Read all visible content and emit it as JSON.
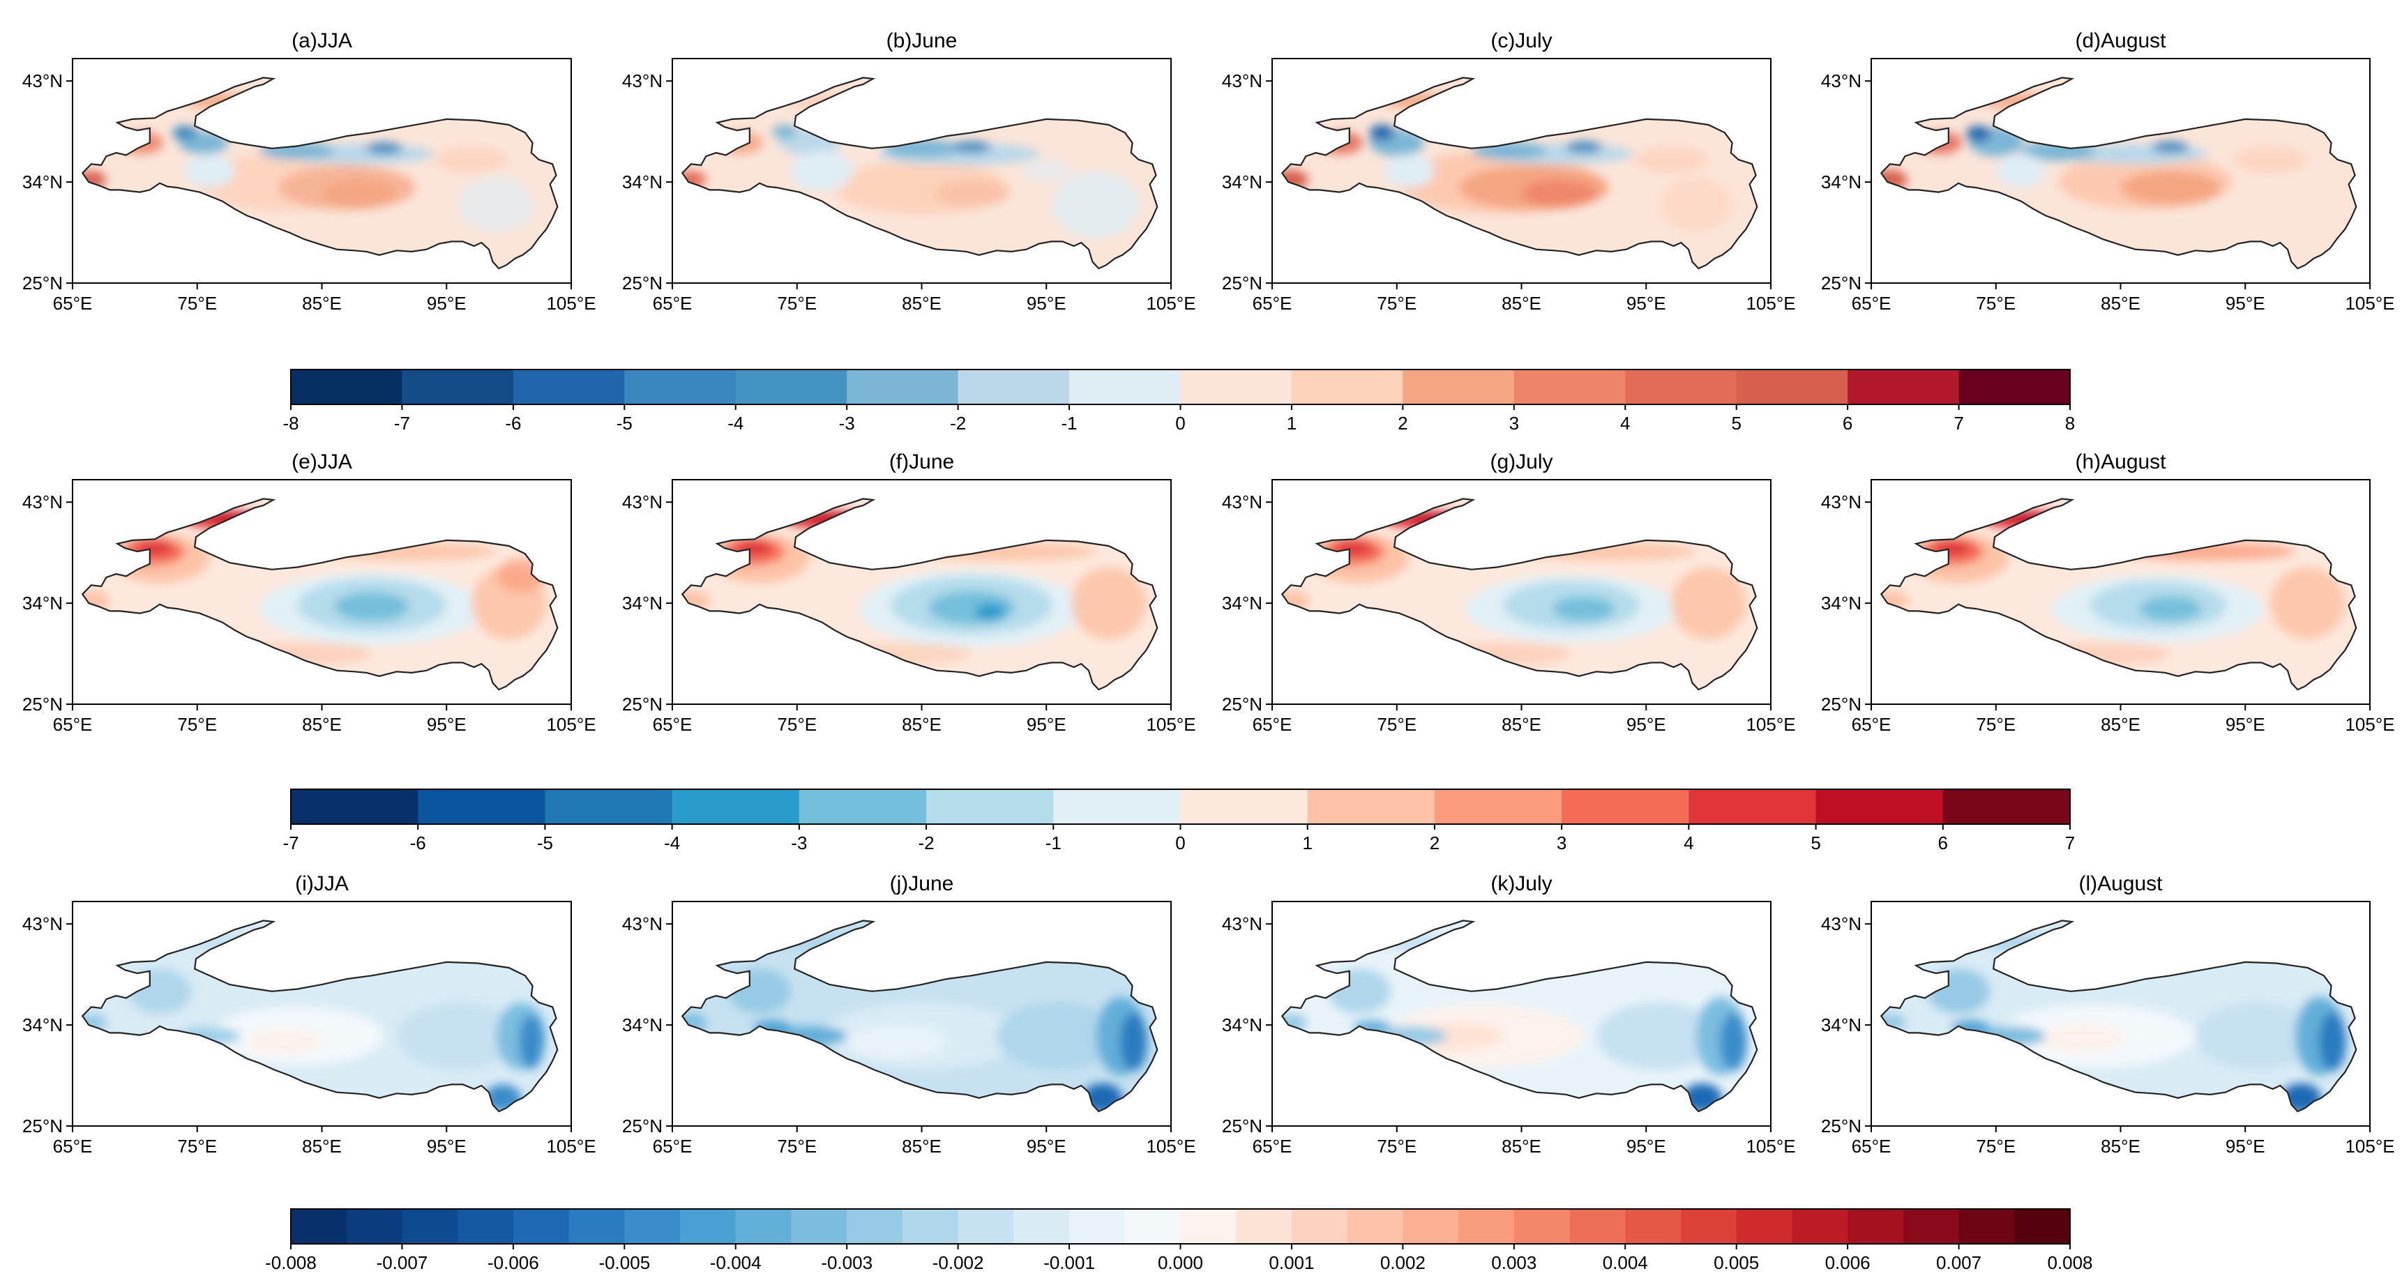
{
  "figure": {
    "rows": [
      {
        "panels": [
          {
            "title": "(a)JJA",
            "pattern": "r1_jja"
          },
          {
            "title": "(b)June",
            "pattern": "r1_june"
          },
          {
            "title": "(c)July",
            "pattern": "r1_july"
          },
          {
            "title": "(d)August",
            "pattern": "r1_august"
          }
        ],
        "colorbar": {
          "ticks": [
            "-8",
            "-7",
            "-6",
            "-5",
            "-4",
            "-3",
            "-2",
            "-1",
            "0",
            "1",
            "2",
            "3",
            "4",
            "5",
            "6",
            "7",
            "8"
          ],
          "colors": [
            "#053061",
            "#134c87",
            "#2166ac",
            "#3a87bf",
            "#4393c3",
            "#7bb6d6",
            "#bad8e9",
            "#dfedf5",
            "#fbe5d9",
            "#fdd2bb",
            "#f4a582",
            "#ee8468",
            "#e26c57",
            "#d6604d",
            "#b2182b",
            "#67001f"
          ]
        }
      },
      {
        "panels": [
          {
            "title": "(e)JJA",
            "pattern": "r2_jja"
          },
          {
            "title": "(f)June",
            "pattern": "r2_june"
          },
          {
            "title": "(g)July",
            "pattern": "r2_july"
          },
          {
            "title": "(h)August",
            "pattern": "r2_august"
          }
        ],
        "colorbar": {
          "ticks": [
            "-7",
            "-6",
            "-5",
            "-4",
            "-3",
            "-2",
            "-1",
            "0",
            "1",
            "2",
            "3",
            "4",
            "5",
            "6",
            "7"
          ],
          "colors": [
            "#08306b",
            "#0b559f",
            "#1f78b4",
            "#2a9ccc",
            "#74bfdc",
            "#b5dceb",
            "#e1f0f7",
            "#fde8dd",
            "#fcc3a6",
            "#fb9c7c",
            "#f46b56",
            "#e0363a",
            "#bf0f25",
            "#7a0619"
          ]
        }
      },
      {
        "panels": [
          {
            "title": "(i)JJA",
            "pattern": "r3_jja"
          },
          {
            "title": "(j)June",
            "pattern": "r3_june"
          },
          {
            "title": "(k)July",
            "pattern": "r3_july"
          },
          {
            "title": "(l)August",
            "pattern": "r3_august"
          }
        ],
        "colorbar": {
          "ticks": [
            "-0.008",
            "-0.007",
            "-0.006",
            "-0.005",
            "-0.004",
            "-0.003",
            "-0.002",
            "-0.001",
            "0.000",
            "0.001",
            "0.002",
            "0.003",
            "0.004",
            "0.005",
            "0.006",
            "0.007",
            "0.008"
          ],
          "colors": [
            "#08306b",
            "#0a3c7e",
            "#0d4a90",
            "#1559a2",
            "#1f69b4",
            "#2b7bc0",
            "#3a8dca",
            "#4a9fd3",
            "#62afd9",
            "#7cbddf",
            "#96cae5",
            "#afd6eb",
            "#c6e1f0",
            "#d9ebf5",
            "#e8f3f9",
            "#f3f8fb",
            "#fdf2ec",
            "#fde3d6",
            "#fcd3c0",
            "#fcc2aa",
            "#fbb094",
            "#f89c7e",
            "#f4866a",
            "#ee6f57",
            "#e65846",
            "#dc4138",
            "#cf2b2d",
            "#bd1b25",
            "#a5111f",
            "#8a0a1b",
            "#6e0516",
            "#55020f"
          ]
        }
      }
    ],
    "lon_ticks": [
      "65°E",
      "75°E",
      "85°E",
      "95°E",
      "105°E"
    ],
    "lat_ticks": [
      "43°N",
      "34°N",
      "25°N"
    ],
    "lon_range": [
      65,
      105
    ],
    "lat_range": [
      25,
      45
    ]
  }
}
